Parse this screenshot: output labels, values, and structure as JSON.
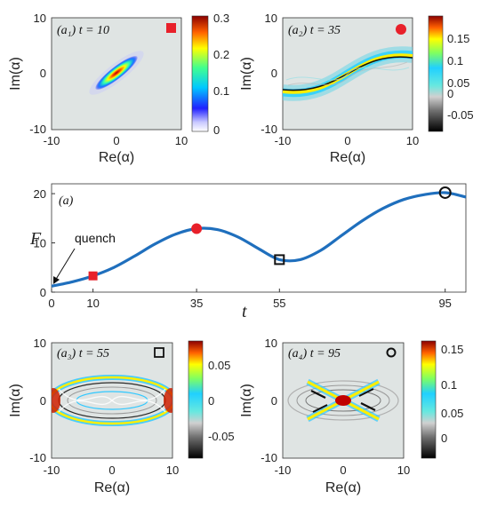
{
  "chart_data": [
    {
      "type": "heatmap",
      "panel_label": "(a₁) t = 10",
      "xlabel": "Re(α)",
      "ylabel": "Im(α)",
      "xlim": [
        -10,
        10
      ],
      "ylim": [
        -10,
        10
      ],
      "xticks": [
        "-10",
        "0",
        "10"
      ],
      "yticks": [
        "10",
        "0",
        "-10"
      ],
      "colorbar_ticks": [
        "0.3",
        "0.2",
        "0.1",
        "0"
      ],
      "clim": [
        0,
        0.3
      ],
      "marker": "filled-square",
      "marker_color": "#e8202a"
    },
    {
      "type": "heatmap",
      "panel_label": "(a₂) t = 35",
      "xlabel": "Re(α)",
      "ylabel": "Im(α)",
      "xlim": [
        -10,
        10
      ],
      "ylim": [
        -10,
        10
      ],
      "xticks": [
        "-10",
        "0",
        "10"
      ],
      "yticks": [
        "10",
        "0",
        "-10"
      ],
      "colorbar_ticks": [
        "0.15",
        "0.1",
        "0.05",
        "0",
        "-0.05"
      ],
      "clim": [
        -0.07,
        0.19
      ],
      "marker": "filled-circle",
      "marker_color": "#e8202a"
    },
    {
      "type": "line",
      "panel_label": "(a)",
      "xlabel": "t",
      "ylabel": "F",
      "xlim": [
        0,
        100
      ],
      "ylim": [
        0,
        22
      ],
      "xticks": [
        "0",
        "10",
        "35",
        "55",
        "95"
      ],
      "yticks": [
        "20",
        "10",
        "0"
      ],
      "annotation": "quench",
      "series": [
        {
          "x": [
            0,
            5,
            10,
            15,
            20,
            25,
            30,
            35,
            40,
            45,
            50,
            55,
            60,
            65,
            70,
            75,
            80,
            85,
            90,
            95,
            100
          ],
          "y": [
            1.2,
            2.1,
            3.3,
            5.0,
            7.3,
            9.8,
            11.8,
            12.9,
            12.7,
            11.2,
            8.8,
            6.6,
            6.6,
            8.5,
            11.5,
            14.5,
            17.0,
            18.8,
            19.8,
            20.2,
            19.3
          ],
          "color": "#1f6fbd"
        }
      ],
      "markers": [
        {
          "x": 10,
          "y": 3.3,
          "shape": "filled-square",
          "color": "#e8202a"
        },
        {
          "x": 35,
          "y": 12.9,
          "shape": "filled-circle",
          "color": "#e8202a"
        },
        {
          "x": 55,
          "y": 6.6,
          "shape": "open-square",
          "color": "#111111"
        },
        {
          "x": 95,
          "y": 20.2,
          "shape": "open-circle",
          "color": "#111111"
        }
      ]
    },
    {
      "type": "heatmap",
      "panel_label": "(a₃) t = 55",
      "xlabel": "Re(α)",
      "ylabel": "Im(α)",
      "xlim": [
        -10,
        10
      ],
      "ylim": [
        -10,
        10
      ],
      "xticks": [
        "-10",
        "0",
        "10"
      ],
      "yticks": [
        "10",
        "0",
        "-10"
      ],
      "colorbar_ticks": [
        "0.05",
        "0",
        "-0.05"
      ],
      "clim": [
        -0.08,
        0.08
      ],
      "marker": "open-square",
      "marker_color": "#111111"
    },
    {
      "type": "heatmap",
      "panel_label": "(a₄) t = 95",
      "xlabel": "Re(α)",
      "ylabel": "Im(α)",
      "xlim": [
        -10,
        10
      ],
      "ylim": [
        -10,
        10
      ],
      "xticks": [
        "-10",
        "0",
        "10"
      ],
      "yticks": [
        "10",
        "0",
        "-10"
      ],
      "colorbar_ticks": [
        "0.15",
        "0.1",
        "0.05",
        "0"
      ],
      "clim": [
        -0.03,
        0.17
      ],
      "marker": "open-circle",
      "marker_color": "#111111"
    }
  ]
}
